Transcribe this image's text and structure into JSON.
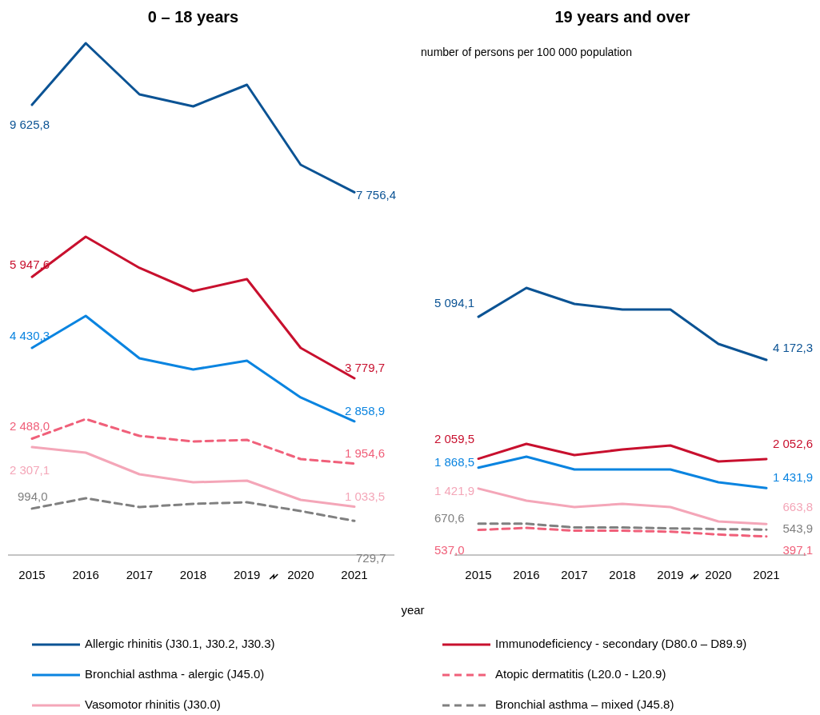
{
  "chart_data": [
    {
      "type": "line",
      "title": "0 – 18 years",
      "xlabel": "year",
      "categories": [
        "2015",
        "2016",
        "2017",
        "2018",
        "2019",
        "2020",
        "2021"
      ],
      "legend": "bottom",
      "series": [
        {
          "name": "Allergic rhinitis  (J30.1, J30.2, J30.3)",
          "color": "#0b5394",
          "values": [
            9625.8,
            10944,
            9850,
            9593,
            10055,
            8345,
            7756.4
          ],
          "value_labels": [
            "9 625,8",
            null,
            null,
            null,
            null,
            null,
            "7 756,4"
          ]
        },
        {
          "name": "Immunodeficiency  - secondary  (D80.0 – D89.9)",
          "color": "#c8102e",
          "values": [
            5947.6,
            6806,
            6139,
            5643,
            5900,
            4429,
            3779.7
          ],
          "value_labels": [
            "5 947,6",
            null,
            null,
            null,
            null,
            null,
            "3 779,7"
          ]
        },
        {
          "name": "Bronchial asthma - alergic (J45.0)",
          "color": "#0a84e0",
          "values": [
            4430.3,
            5113,
            4207,
            3967,
            4155,
            3369,
            2858.9
          ],
          "value_labels": [
            "4 430,3",
            null,
            null,
            null,
            null,
            null,
            "2 858,9"
          ]
        },
        {
          "name": "Atopic dermatitis  (L20.0 - L20.9)",
          "color": "#f0607a",
          "line_style": "dashed",
          "values": [
            2488.0,
            2907,
            2548,
            2428,
            2462,
            2052,
            1954.6
          ],
          "value_labels": [
            "2 488,0",
            null,
            null,
            null,
            null,
            null,
            "1 954,6"
          ]
        },
        {
          "name": "Vasomotor rhinitis (J30.0)",
          "color": "#f4a6b8",
          "values": [
            2307.1,
            2189,
            1727,
            1556,
            1590,
            1180,
            1033.5
          ],
          "value_labels": [
            "2 307,1",
            null,
            null,
            null,
            null,
            null,
            "1 033,5"
          ]
        },
        {
          "name": "Bronchial  asthma – mixed (J45.8)",
          "color": "#808080",
          "line_style": "dashed",
          "values": [
            994.0,
            1214,
            1026,
            1094,
            1129,
            940,
            729.7
          ],
          "value_labels": [
            "994,0",
            null,
            null,
            null,
            null,
            null,
            "729,7"
          ]
        }
      ]
    },
    {
      "type": "line",
      "title": "19 years and over",
      "annotations": [
        "number of persons  per  100 000  population"
      ],
      "categories": [
        "2015",
        "2016",
        "2017",
        "2018",
        "2019",
        "2020",
        "2021"
      ],
      "series": [
        {
          "color": "#0b5394",
          "values": [
            5094.1,
            5711,
            5369,
            5250,
            5250,
            4514,
            4172.3
          ],
          "value_labels": [
            "5 094,1",
            null,
            null,
            null,
            null,
            null,
            "4 172,3"
          ]
        },
        {
          "color": "#c8102e",
          "values": [
            2059.5,
            2377,
            2138,
            2257,
            2343,
            2001,
            2052.6
          ],
          "value_labels": [
            "2 059,5",
            null,
            null,
            null,
            null,
            null,
            "2 052,6"
          ]
        },
        {
          "color": "#0a84e0",
          "values": [
            1868.5,
            2103,
            1830,
            1830,
            1830,
            1556,
            1431.9
          ],
          "value_labels": [
            "1 868,5",
            null,
            null,
            null,
            null,
            null,
            "1 431,9"
          ]
        },
        {
          "color": "#f0607a",
          "line_style": "dashed",
          "values": [
            537.0,
            580,
            520,
            520,
            500,
            440,
            397.1
          ],
          "value_labels": [
            "537,0",
            null,
            null,
            null,
            null,
            null,
            "397,1"
          ]
        },
        {
          "color": "#f4a6b8",
          "values": [
            1421.9,
            1163,
            1026,
            1094,
            1026,
            718,
            663.8
          ],
          "value_labels": [
            "1 421,9",
            null,
            null,
            null,
            null,
            null,
            "663,8"
          ]
        },
        {
          "color": "#808080",
          "line_style": "dashed",
          "values": [
            670.6,
            670,
            590,
            590,
            570,
            555,
            543.9
          ],
          "value_labels": [
            "670,6",
            null,
            null,
            null,
            null,
            null,
            "543,9"
          ]
        }
      ]
    }
  ]
}
